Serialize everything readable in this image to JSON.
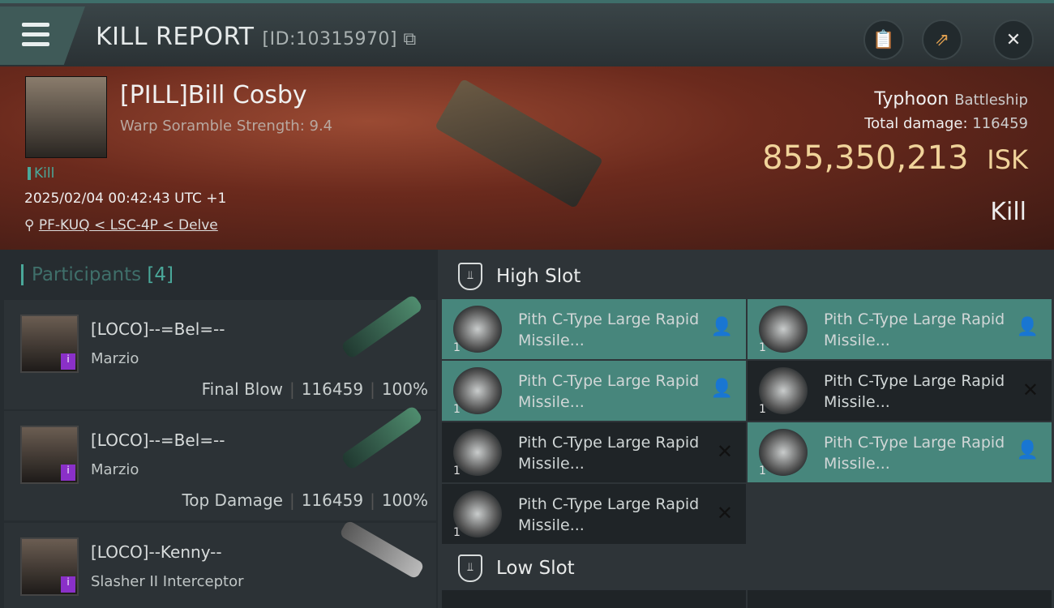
{
  "header": {
    "title": "KILL REPORT",
    "id_label": "[ID:10315970]",
    "buttons": [
      "clipboard-icon",
      "share-icon",
      "close-icon"
    ]
  },
  "victim": {
    "name": "[PILL]Bill Cosby",
    "subtitle": "Warp Soramble Strength: 9.4",
    "tag": "Kill",
    "datetime": "2025/02/04 00:42:43 UTC +1",
    "location": "PF-KUQ < LSC-4P < Delve",
    "ship": "Typhoon",
    "ship_class": "Battleship",
    "total_damage_label": "Total damage:",
    "total_damage": "116459",
    "value": "855,350,213",
    "currency": "ISK",
    "result": "Kill"
  },
  "participants": {
    "title": "Participants",
    "count": "[4]",
    "rows": [
      {
        "name": "[LOCO]--=Bel=--",
        "ship": "Marzio",
        "role": "Final Blow",
        "damage": "116459",
        "percent": "100%"
      },
      {
        "name": "[LOCO]--=Bel=--",
        "ship": "Marzio",
        "role": "Top Damage",
        "damage": "116459",
        "percent": "100%"
      },
      {
        "name": "[LOCO]--Kenny--",
        "ship": "Slasher II Interceptor"
      }
    ]
  },
  "slots": {
    "high_title": "High Slot",
    "low_title": "Low Slot",
    "high": [
      {
        "name": "Pith C-Type Large Rapid Missile...",
        "qty": "1",
        "status": "dropped"
      },
      {
        "name": "Pith C-Type Large Rapid Missile...",
        "qty": "1",
        "status": "dropped"
      },
      {
        "name": "Pith C-Type Large Rapid Missile...",
        "qty": "1",
        "status": "dropped"
      },
      {
        "name": "Pith C-Type Large Rapid Missile...",
        "qty": "1",
        "status": "destroyed"
      },
      {
        "name": "Pith C-Type Large Rapid Missile...",
        "qty": "1",
        "status": "destroyed"
      },
      {
        "name": "Pith C-Type Large Rapid Missile...",
        "qty": "1",
        "status": "dropped"
      },
      {
        "name": "Pith C-Type Large Rapid Missile...",
        "qty": "1",
        "status": "destroyed"
      }
    ]
  },
  "colors": {
    "accent": "#47867c",
    "isk": "#f0d39a",
    "badge": "#8a30c8"
  }
}
